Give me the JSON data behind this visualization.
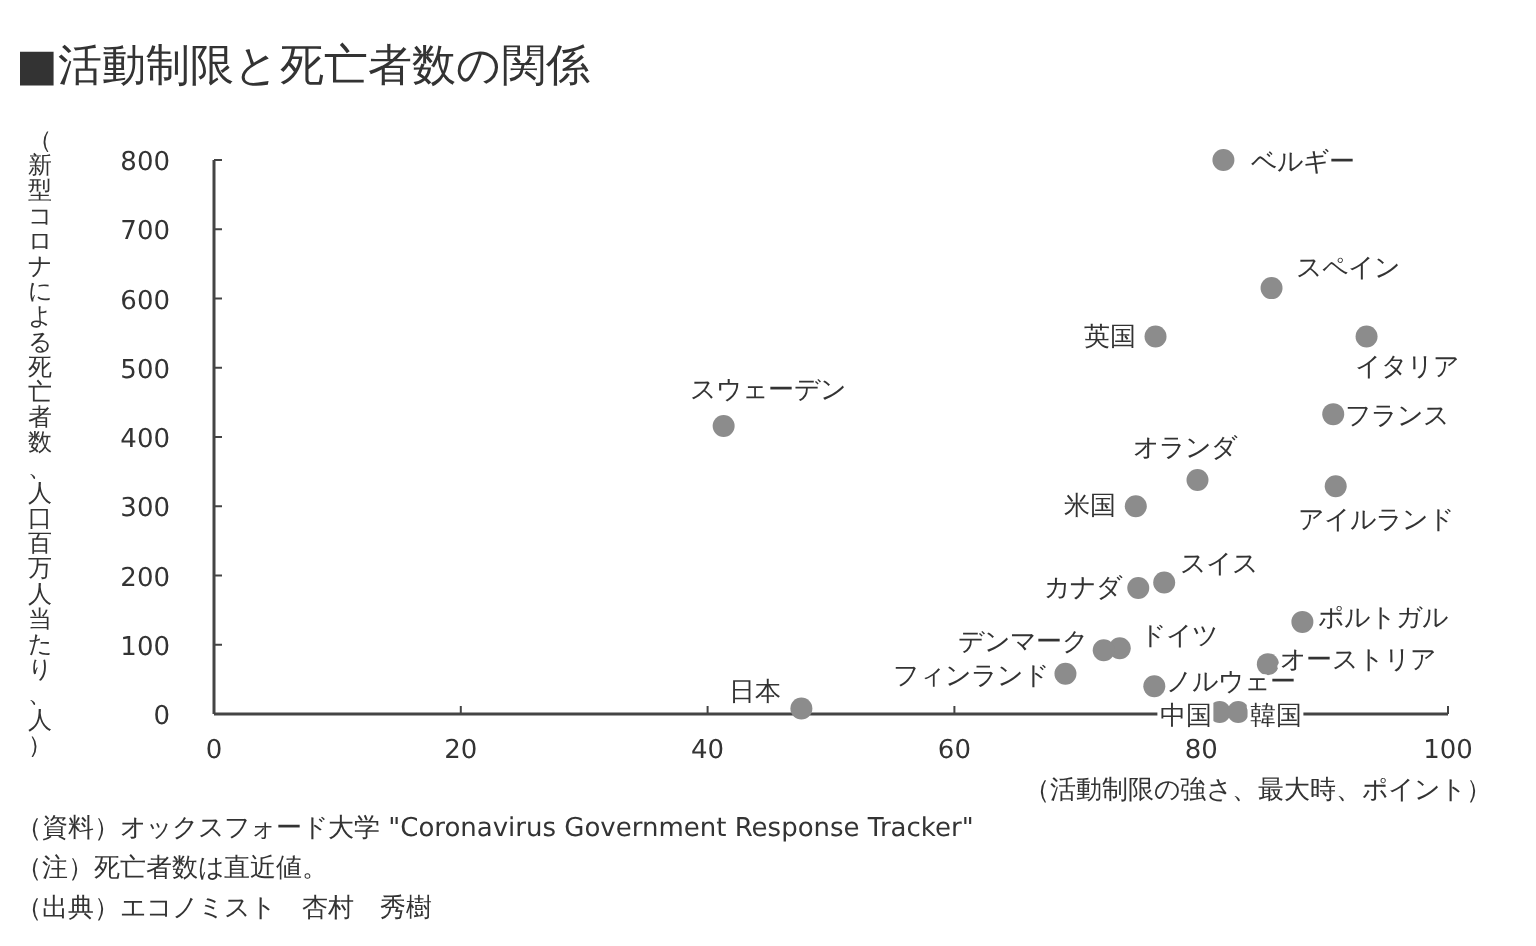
{
  "chart_data": {
    "type": "scatter",
    "title": "■活動制限と死亡者数の関係",
    "xlabel": "（活動制限の強さ、最大時、ポイント）",
    "ylabel": "（新型コロナによる死亡者数、人口百万人当たり、人）",
    "x": [
      81.8,
      85.7,
      76.3,
      93.4,
      41.3,
      90.7,
      79.7,
      74.7,
      90.9,
      77.0,
      74.9,
      88.2,
      73.4,
      72.1,
      85.4,
      69.0,
      76.2,
      81.5,
      83.0,
      47.6
    ],
    "values": [
      800,
      615,
      545,
      545,
      416,
      433,
      338,
      300,
      329,
      190,
      182,
      133,
      95,
      92,
      72,
      58,
      40,
      3,
      3,
      8
    ],
    "color": "#8c8c8c",
    "marker": "circle",
    "xlim": [
      0,
      100
    ],
    "ylim": [
      0,
      800
    ],
    "xticks": [
      0,
      20,
      40,
      60,
      80,
      100
    ],
    "yticks": [
      0,
      100,
      200,
      300,
      400,
      500,
      600,
      700,
      800
    ],
    "annotations": [
      {
        "text": "ベルギー",
        "x": 81.8,
        "y": 800
      },
      {
        "text": "スペイン",
        "x": 85.7,
        "y": 615
      },
      {
        "text": "英国",
        "x": 76.3,
        "y": 545
      },
      {
        "text": "イタリア",
        "x": 93.4,
        "y": 545
      },
      {
        "text": "スウェーデン",
        "x": 41.3,
        "y": 416
      },
      {
        "text": "フランス",
        "x": 90.7,
        "y": 433
      },
      {
        "text": "オランダ",
        "x": 79.7,
        "y": 338
      },
      {
        "text": "米国",
        "x": 74.7,
        "y": 300
      },
      {
        "text": "アイルランド",
        "x": 90.9,
        "y": 329
      },
      {
        "text": "スイス",
        "x": 77.0,
        "y": 190
      },
      {
        "text": "カナダ",
        "x": 74.9,
        "y": 182
      },
      {
        "text": "ポルトガル",
        "x": 88.2,
        "y": 133
      },
      {
        "text": "ドイツ",
        "x": 73.4,
        "y": 95
      },
      {
        "text": "デンマーク",
        "x": 72.1,
        "y": 92
      },
      {
        "text": "オーストリア",
        "x": 85.4,
        "y": 72
      },
      {
        "text": "フィンランド",
        "x": 69.0,
        "y": 58
      },
      {
        "text": "ノルウェー",
        "x": 76.2,
        "y": 40
      },
      {
        "text": "中国",
        "x": 81.5,
        "y": 3
      },
      {
        "text": "韓国",
        "x": 83.0,
        "y": 3
      },
      {
        "text": "日本",
        "x": 47.6,
        "y": 8
      },
      "（資料）オックスフォード大学 \"Coronavirus Government Response Tracker\"",
      "（注）死亡者数は直近値。",
      "（出典）エコノミスト　杏村　秀樹"
    ]
  }
}
